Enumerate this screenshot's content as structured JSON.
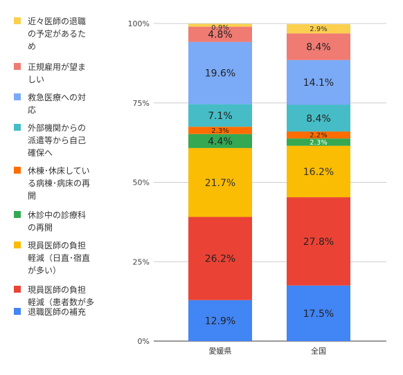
{
  "chart_data": {
    "type": "bar",
    "stacked": true,
    "percent": true,
    "categories": [
      "愛媛県",
      "全国"
    ],
    "y_ticks": [
      "0%",
      "25%",
      "50%",
      "75%",
      "100%"
    ],
    "ylim": [
      0,
      100
    ],
    "grid": true,
    "legend_position": "left",
    "series": [
      {
        "name": "退職医師の補充",
        "values": [
          12.9,
          17.5
        ],
        "labels": [
          "12.9%",
          "17.5%"
        ],
        "color": "#4285f4"
      },
      {
        "name": "現員医師の負担軽減（患者数が多",
        "values": [
          26.2,
          27.8
        ],
        "labels": [
          "26.2%",
          "27.8%"
        ],
        "color": "#ea4335"
      },
      {
        "name": "現員医師の負担軽減（日直・宿直が多い）",
        "values": [
          21.7,
          16.2
        ],
        "labels": [
          "21.7%",
          "16.2%"
        ],
        "color": "#fbbc04"
      },
      {
        "name": "休診中の診療科の再開",
        "values": [
          4.4,
          2.3
        ],
        "labels": [
          "4.4%",
          "2.3%"
        ],
        "color": "#34a853"
      },
      {
        "name": "休棟・休床している病棟・病床の再開",
        "values": [
          2.3,
          2.2
        ],
        "labels": [
          "2.3%",
          "2.2%"
        ],
        "color": "#ff6d01"
      },
      {
        "name": "外部機関からの派遣等から自己確保へ",
        "values": [
          7.1,
          8.4
        ],
        "labels": [
          "7.1%",
          "8.4%"
        ],
        "color": "#46bdc6"
      },
      {
        "name": "救急医療への対応",
        "values": [
          19.6,
          14.1
        ],
        "labels": [
          "19.6%",
          "14.1%"
        ],
        "color": "#7baaf7"
      },
      {
        "name": "正規雇用が望ましい",
        "values": [
          4.8,
          8.4
        ],
        "labels": [
          "4.8%",
          "8.4%"
        ],
        "color": "#f07b72"
      },
      {
        "name": "近々医師の退職の予定があるため",
        "values": [
          0.9,
          2.9
        ],
        "labels": [
          "0.9%",
          "2.9%"
        ],
        "color": "#fcd04f"
      }
    ],
    "legend": [
      {
        "label": "近々医師の退職\nの予定があるた\nめ",
        "color": "#fcd04f"
      },
      {
        "label": "正規雇用が望ま\nしい",
        "color": "#f07b72"
      },
      {
        "label": "救急医療への対\n応",
        "color": "#7baaf7"
      },
      {
        "label": "外部機関からの\n派遣等から自己\n確保へ",
        "color": "#46bdc6"
      },
      {
        "label": "休棟･休床してい\nる病棟･病床の再\n開",
        "color": "#ff6d01"
      },
      {
        "label": "休診中の診療科\nの再開",
        "color": "#34a853"
      },
      {
        "label": "現員医師の負担\n軽減（日直･宿直\nが多い）",
        "color": "#fbbc04"
      },
      {
        "label": "現員医師の負担\n軽減（患者数が多",
        "color": "#ea4335"
      },
      {
        "label": "退職医師の補充",
        "color": "#4285f4"
      }
    ]
  }
}
